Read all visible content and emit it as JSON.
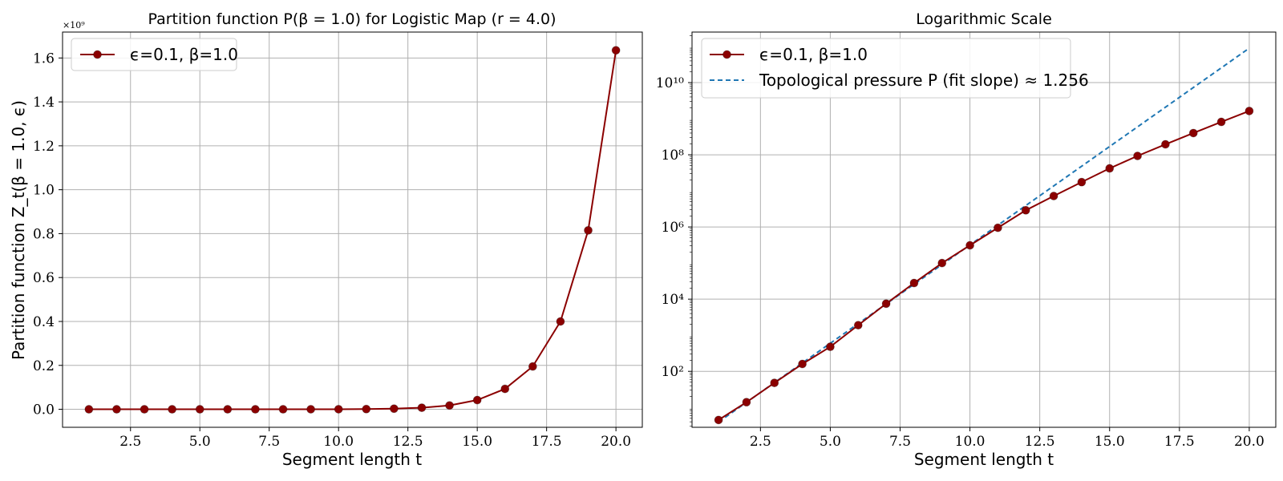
{
  "chart_data": [
    {
      "type": "line",
      "title": "Partition function P(β = 1.0) for Logistic Map (r = 4.0)",
      "xlabel": "Segment length t",
      "ylabel": "Partition function Z_t(β = 1.0, ϵ)",
      "y_offset_text": "×10⁹",
      "xlim": [
        0.05,
        20.95
      ],
      "ylim": [
        -0.082,
        1.718
      ],
      "xticks": [
        2.5,
        5.0,
        7.5,
        10.0,
        12.5,
        15.0,
        17.5,
        20.0
      ],
      "xtick_labels": [
        "2.5",
        "5.0",
        "7.5",
        "10.0",
        "12.5",
        "15.0",
        "17.5",
        "20.0"
      ],
      "yticks": [
        0.0,
        0.2,
        0.4,
        0.6,
        0.8,
        1.0,
        1.2,
        1.4,
        1.6
      ],
      "ytick_labels": [
        "0.0",
        "0.2",
        "0.4",
        "0.6",
        "0.8",
        "1.0",
        "1.2",
        "1.4",
        "1.6"
      ],
      "grid": true,
      "legend_position": "top-left",
      "series": [
        {
          "name": "ϵ=0.1, β=1.0",
          "color": "#8b0000",
          "marker": "circle",
          "x": [
            1,
            2,
            3,
            4,
            5,
            6,
            7,
            8,
            9,
            10,
            11,
            12,
            13,
            14,
            15,
            16,
            17,
            18,
            19,
            20
          ],
          "y": [
            4.5e-09,
            1.4e-08,
            4.8e-08,
            1.6e-07,
            4.8e-07,
            1.9e-06,
            7.5e-06,
            2.8e-05,
            0.0001,
            0.00031,
            0.00095,
            0.0029,
            0.0072,
            0.0175,
            0.042,
            0.093,
            0.195,
            0.4,
            0.815,
            1.635
          ]
        }
      ]
    },
    {
      "type": "line",
      "title": "Logarithmic Scale",
      "xlabel": "Segment length t",
      "ylabel": "",
      "yscale": "log",
      "xlim": [
        0.05,
        20.95
      ],
      "ylim_log10": [
        0.45,
        11.4
      ],
      "xticks": [
        2.5,
        5.0,
        7.5,
        10.0,
        12.5,
        15.0,
        17.5,
        20.0
      ],
      "xtick_labels": [
        "2.5",
        "5.0",
        "7.5",
        "10.0",
        "12.5",
        "15.0",
        "17.5",
        "20.0"
      ],
      "yticks_log10": [
        2,
        4,
        6,
        8,
        10
      ],
      "ytick_labels": [
        "10²",
        "10⁴",
        "10⁶",
        "10⁸",
        "10¹⁰"
      ],
      "grid": true,
      "legend_position": "top-left",
      "series": [
        {
          "name": "ϵ=0.1, β=1.0",
          "color": "#8b0000",
          "marker": "circle",
          "style": "solid",
          "x": [
            1,
            2,
            3,
            4,
            5,
            6,
            7,
            8,
            9,
            10,
            11,
            12,
            13,
            14,
            15,
            16,
            17,
            18,
            19,
            20
          ],
          "y": [
            4.5,
            14,
            48,
            160,
            480,
            1900,
            7500,
            28000,
            100000,
            310000,
            950000,
            2900000,
            7200000,
            17500000,
            42000000,
            93000000,
            195000000,
            400000000,
            815000000,
            1635000000
          ]
        },
        {
          "name": "Topological pressure P (fit slope) ≈ 1.256",
          "color": "#1f77b4",
          "marker": "none",
          "style": "dashed",
          "x": [
            1,
            20
          ],
          "y": [
            3.95,
            90000000000.0
          ]
        }
      ]
    }
  ]
}
